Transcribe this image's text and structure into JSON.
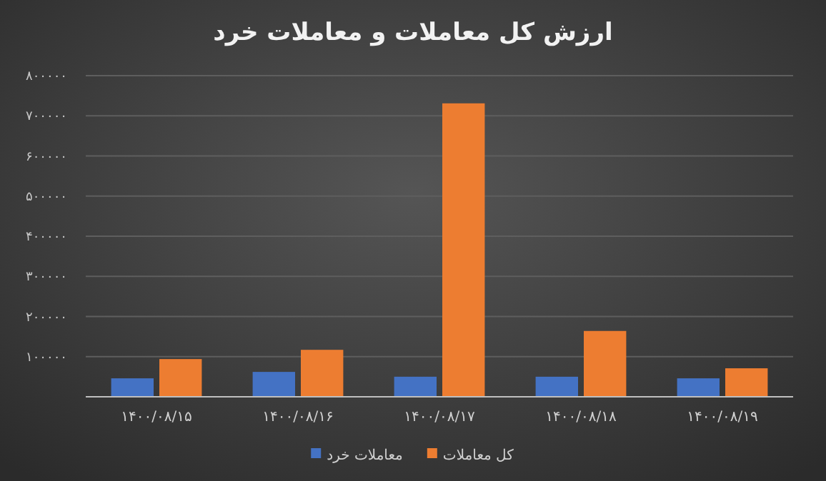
{
  "chart_data": {
    "type": "bar",
    "title": "ارزش کل معاملات و معاملات خرد",
    "categories": [
      "۱۴۰۰/۰۸/۱۵",
      "۱۴۰۰/۰۸/۱۶",
      "۱۴۰۰/۰۸/۱۷",
      "۱۴۰۰/۰۸/۱۸",
      "۱۴۰۰/۰۸/۱۹"
    ],
    "series": [
      {
        "name": "معاملات خرد",
        "color": "#4472c4",
        "values": [
          46000,
          62000,
          50000,
          50000,
          46000
        ]
      },
      {
        "name": "کل معاملات",
        "color": "#ed7d31",
        "values": [
          94000,
          117000,
          731000,
          164000,
          71000
        ]
      }
    ],
    "ylim": [
      0,
      800000
    ],
    "yticks": [
      {
        "value": 100000,
        "label": "۱۰۰۰۰۰"
      },
      {
        "value": 200000,
        "label": "۲۰۰۰۰۰"
      },
      {
        "value": 300000,
        "label": "۳۰۰۰۰۰"
      },
      {
        "value": 400000,
        "label": "۴۰۰۰۰۰"
      },
      {
        "value": 500000,
        "label": "۵۰۰۰۰۰"
      },
      {
        "value": 600000,
        "label": "۶۰۰۰۰۰"
      },
      {
        "value": 700000,
        "label": "۷۰۰۰۰۰"
      },
      {
        "value": 800000,
        "label": "۸۰۰۰۰۰"
      }
    ],
    "grid": "y",
    "legend": "bottom"
  }
}
